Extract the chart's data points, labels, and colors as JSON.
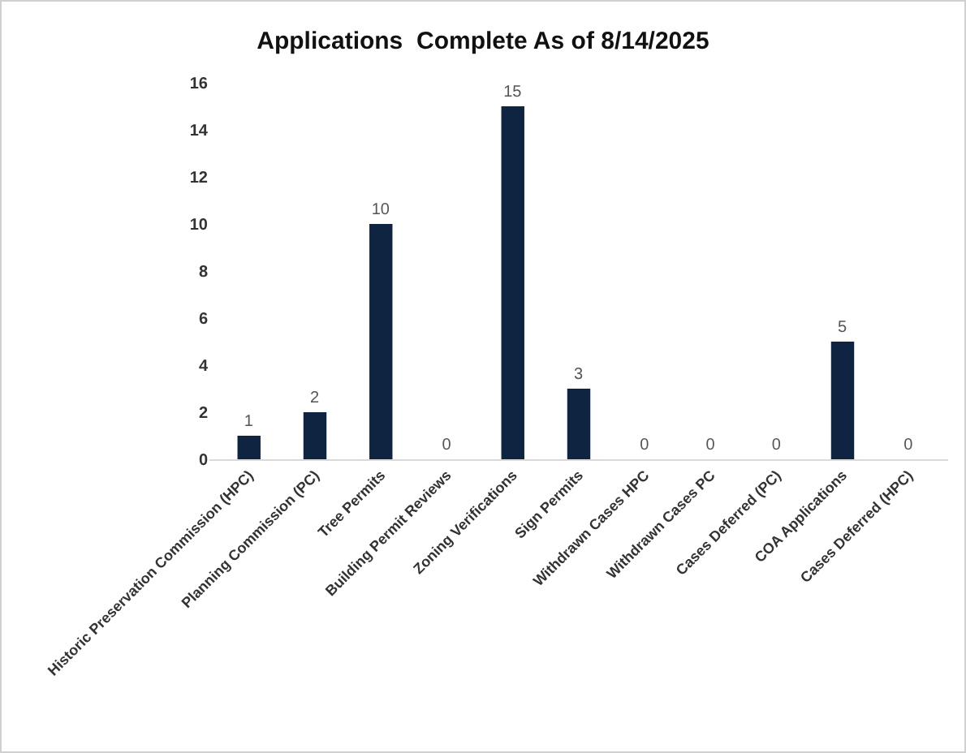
{
  "chart_data": {
    "type": "bar",
    "title": "Applications  Complete As of 8/14/2025",
    "categories": [
      "Historic Preservation Commission (HPC)",
      "Planning Commission (PC)",
      "Tree Permits",
      "Building Permit Reviews",
      "Zoning Verifications",
      "Sign Permits",
      "Withdrawn Cases HPC",
      "Withdrawn Cases PC",
      "Cases Deferred (PC)",
      "COA Applications",
      "Cases Deferred (HPC)"
    ],
    "values": [
      1,
      2,
      10,
      0,
      15,
      3,
      0,
      0,
      0,
      5,
      0
    ],
    "color": "#0f2440",
    "ylim": [
      0,
      16
    ],
    "yticks": [
      0,
      2,
      4,
      6,
      8,
      10,
      12,
      14,
      16
    ],
    "data_labels": true
  }
}
